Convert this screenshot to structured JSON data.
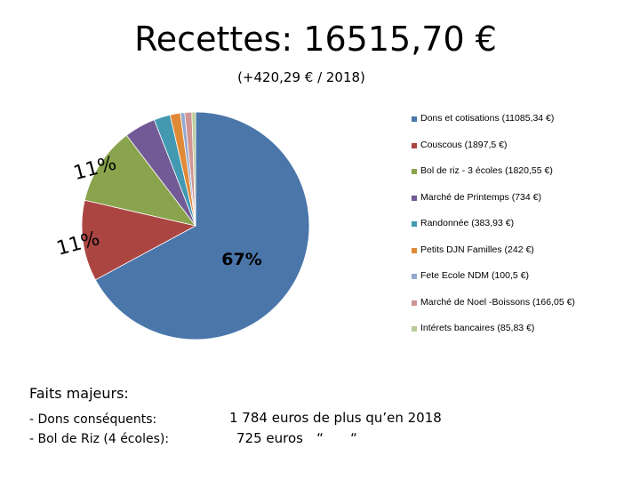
{
  "chart_data": {
    "type": "pie",
    "title": "Recettes: 16515,70 €",
    "subtitle": "(+420,29 € / 2018)",
    "slices": [
      {
        "label": "Dons et cotisations  (11085,34 €)",
        "value": 11085.34,
        "color": "#4a76aa"
      },
      {
        "label": "Couscous  (1897,5 €)",
        "value": 1897.5,
        "color": "#ab4542"
      },
      {
        "label": "Bol de riz - 3 écoles  (1820,55 €)",
        "value": 1820.55,
        "color": "#89a44c"
      },
      {
        "label": "Marché de Printemps  (734 €)",
        "value": 734,
        "color": "#715a95"
      },
      {
        "label": "Randonnée  (383,93 €)",
        "value": 383.93,
        "color": "#4299b1"
      },
      {
        "label": "Petits DJN Familles  (242 €)",
        "value": 242,
        "color": "#e08937"
      },
      {
        "label": "Fete Ecole NDM  (100,5 €)",
        "value": 100.5,
        "color": "#93a9cf"
      },
      {
        "label": "Marché de Noel -Boissons  (166,05 €)",
        "value": 166.05,
        "color": "#d09594"
      },
      {
        "label": "Intérets bancaires  (85,83 €)",
        "value": 85.83,
        "color": "#b9cc97"
      }
    ],
    "data_labels": [
      "67%",
      "11%",
      "11%"
    ],
    "legend_position": "right"
  },
  "facts": {
    "title": "Faits majeurs:",
    "rows": [
      {
        "label": "- Dons conséquents:",
        "value": "1 784 euros de plus qu’en 2018"
      },
      {
        "label": "- Bol de Riz (4 écoles):",
        "value": "725 euros",
        "ditto1": "“",
        "ditto2": "“"
      }
    ]
  }
}
